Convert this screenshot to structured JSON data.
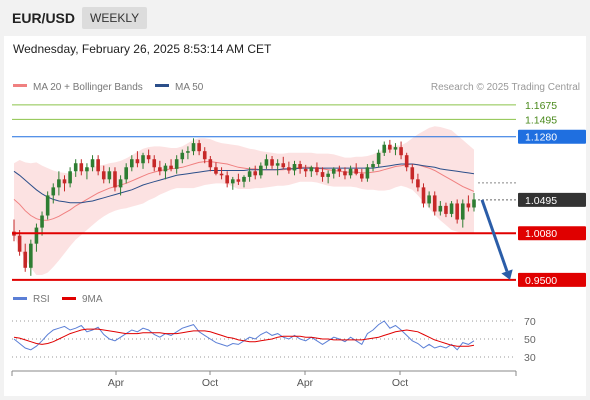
{
  "header": {
    "symbol": "EUR/USD",
    "timeframe": "WEEKLY"
  },
  "datetime": "Wednesday, February 26, 2025 8:53:14 AM CET",
  "legend": {
    "ma20": {
      "label": "MA 20 + Bollinger Bands",
      "color": "#f08080"
    },
    "ma50": {
      "label": "MA 50",
      "color": "#2c4f8a"
    },
    "rsi": {
      "label": "RSI",
      "color": "#5b7fd6"
    },
    "ma9": {
      "label": "9MA",
      "color": "#e00000"
    }
  },
  "credit": "Research © 2025 Trading Central",
  "colors": {
    "bull": "#2e7d32",
    "bear": "#c62828",
    "arrow": "#2b5da8",
    "green_line": "#8bc34a",
    "blue_line": "#1f6fe0",
    "red_line": "#e00000",
    "band": "#fbd8d8"
  },
  "chart_data": {
    "type": "candlestick",
    "price_range": [
      0.9461,
      1.1786
    ],
    "levels": [
      {
        "value": "1.1675",
        "kind": "green"
      },
      {
        "value": "1.1495",
        "kind": "green"
      },
      {
        "value": "1.1280",
        "kind": "blue"
      },
      {
        "value": "1.0495",
        "kind": "current"
      },
      {
        "value": "1.0080",
        "kind": "red"
      },
      {
        "value": "0.9500",
        "kind": "red"
      }
    ],
    "forecast_arrow": {
      "from": 1.0495,
      "to": 0.95
    },
    "x_ticks": [
      "Apr",
      "Oct",
      "Apr",
      "Oct"
    ],
    "candles": [
      [
        1.01,
        1.025,
        0.998,
        1.005
      ],
      [
        1.005,
        1.012,
        0.98,
        0.985
      ],
      [
        0.985,
        0.995,
        0.96,
        0.965
      ],
      [
        0.965,
        1.0,
        0.955,
        0.995
      ],
      [
        0.995,
        1.02,
        0.985,
        1.015
      ],
      [
        1.015,
        1.035,
        1.005,
        1.03
      ],
      [
        1.03,
        1.06,
        1.025,
        1.055
      ],
      [
        1.055,
        1.07,
        1.045,
        1.065
      ],
      [
        1.065,
        1.085,
        1.055,
        1.075
      ],
      [
        1.075,
        1.08,
        1.06,
        1.07
      ],
      [
        1.07,
        1.09,
        1.065,
        1.085
      ],
      [
        1.085,
        1.1,
        1.078,
        1.095
      ],
      [
        1.095,
        1.1,
        1.08,
        1.085
      ],
      [
        1.085,
        1.095,
        1.075,
        1.09
      ],
      [
        1.09,
        1.105,
        1.085,
        1.1
      ],
      [
        1.1,
        1.105,
        1.08,
        1.085
      ],
      [
        1.085,
        1.092,
        1.07,
        1.075
      ],
      [
        1.075,
        1.09,
        1.07,
        1.085
      ],
      [
        1.085,
        1.09,
        1.06,
        1.065
      ],
      [
        1.065,
        1.08,
        1.055,
        1.075
      ],
      [
        1.075,
        1.095,
        1.07,
        1.09
      ],
      [
        1.09,
        1.105,
        1.085,
        1.1
      ],
      [
        1.1,
        1.11,
        1.09,
        1.095
      ],
      [
        1.095,
        1.108,
        1.088,
        1.105
      ],
      [
        1.105,
        1.112,
        1.095,
        1.1
      ],
      [
        1.1,
        1.105,
        1.085,
        1.09
      ],
      [
        1.09,
        1.098,
        1.08,
        1.085
      ],
      [
        1.085,
        1.095,
        1.075,
        1.092
      ],
      [
        1.092,
        1.1,
        1.085,
        1.088
      ],
      [
        1.088,
        1.105,
        1.082,
        1.1
      ],
      [
        1.1,
        1.112,
        1.095,
        1.108
      ],
      [
        1.108,
        1.116,
        1.1,
        1.11
      ],
      [
        1.11,
        1.126,
        1.105,
        1.12
      ],
      [
        1.12,
        1.124,
        1.105,
        1.11
      ],
      [
        1.11,
        1.115,
        1.095,
        1.1
      ],
      [
        1.1,
        1.104,
        1.085,
        1.09
      ],
      [
        1.09,
        1.096,
        1.08,
        1.082
      ],
      [
        1.082,
        1.09,
        1.075,
        1.08
      ],
      [
        1.08,
        1.085,
        1.065,
        1.07
      ],
      [
        1.07,
        1.078,
        1.062,
        1.075
      ],
      [
        1.075,
        1.082,
        1.068,
        1.072
      ],
      [
        1.072,
        1.08,
        1.065,
        1.078
      ],
      [
        1.078,
        1.09,
        1.072,
        1.085
      ],
      [
        1.085,
        1.092,
        1.075,
        1.08
      ],
      [
        1.08,
        1.096,
        1.076,
        1.092
      ],
      [
        1.092,
        1.106,
        1.088,
        1.1
      ],
      [
        1.1,
        1.104,
        1.088,
        1.092
      ],
      [
        1.092,
        1.1,
        1.08,
        1.095
      ],
      [
        1.095,
        1.103,
        1.088,
        1.09
      ],
      [
        1.09,
        1.097,
        1.082,
        1.086
      ],
      [
        1.086,
        1.098,
        1.08,
        1.094
      ],
      [
        1.094,
        1.098,
        1.082,
        1.088
      ],
      [
        1.088,
        1.093,
        1.078,
        1.085
      ],
      [
        1.085,
        1.092,
        1.078,
        1.09
      ],
      [
        1.09,
        1.096,
        1.08,
        1.084
      ],
      [
        1.084,
        1.09,
        1.072,
        1.078
      ],
      [
        1.078,
        1.086,
        1.07,
        1.082
      ],
      [
        1.082,
        1.09,
        1.076,
        1.088
      ],
      [
        1.088,
        1.092,
        1.078,
        1.085
      ],
      [
        1.085,
        1.09,
        1.075,
        1.08
      ],
      [
        1.08,
        1.092,
        1.076,
        1.088
      ],
      [
        1.088,
        1.095,
        1.08,
        1.082
      ],
      [
        1.082,
        1.088,
        1.072,
        1.076
      ],
      [
        1.076,
        1.094,
        1.072,
        1.09
      ],
      [
        1.09,
        1.098,
        1.085,
        1.094
      ],
      [
        1.094,
        1.112,
        1.09,
        1.108
      ],
      [
        1.108,
        1.122,
        1.104,
        1.118
      ],
      [
        1.118,
        1.124,
        1.108,
        1.112
      ],
      [
        1.112,
        1.12,
        1.105,
        1.115
      ],
      [
        1.115,
        1.122,
        1.1,
        1.105
      ],
      [
        1.105,
        1.108,
        1.085,
        1.09
      ],
      [
        1.09,
        1.094,
        1.07,
        1.075
      ],
      [
        1.075,
        1.082,
        1.06,
        1.065
      ],
      [
        1.065,
        1.07,
        1.04,
        1.045
      ],
      [
        1.045,
        1.06,
        1.04,
        1.055
      ],
      [
        1.055,
        1.06,
        1.03,
        1.035
      ],
      [
        1.035,
        1.048,
        1.03,
        1.042
      ],
      [
        1.042,
        1.046,
        1.028,
        1.032
      ],
      [
        1.032,
        1.048,
        1.028,
        1.045
      ],
      [
        1.045,
        1.05,
        1.02,
        1.025
      ],
      [
        1.025,
        1.05,
        1.015,
        1.045
      ],
      [
        1.045,
        1.055,
        1.035,
        1.04
      ],
      [
        1.04,
        1.058,
        1.035,
        1.05
      ]
    ],
    "ma20": [
      1.05,
      1.044,
      1.036,
      1.03,
      1.026,
      1.024,
      1.024,
      1.026,
      1.029,
      1.033,
      1.037,
      1.042,
      1.046,
      1.05,
      1.054,
      1.058,
      1.061,
      1.064,
      1.066,
      1.068,
      1.07,
      1.073,
      1.076,
      1.079,
      1.082,
      1.084,
      1.086,
      1.087,
      1.088,
      1.089,
      1.09,
      1.092,
      1.094,
      1.096,
      1.097,
      1.097,
      1.096,
      1.095,
      1.094,
      1.092,
      1.09,
      1.089,
      1.088,
      1.088,
      1.087,
      1.087,
      1.087,
      1.087,
      1.087,
      1.088,
      1.089,
      1.09,
      1.09,
      1.09,
      1.089,
      1.088,
      1.087,
      1.086,
      1.085,
      1.084,
      1.084,
      1.084,
      1.083,
      1.083,
      1.084,
      1.085,
      1.087,
      1.089,
      1.091,
      1.092,
      1.093,
      1.094,
      1.093,
      1.091,
      1.089,
      1.086,
      1.082,
      1.078,
      1.074,
      1.07,
      1.066,
      1.063,
      1.06
    ],
    "ma50": [
      1.085,
      1.08,
      1.074,
      1.068,
      1.062,
      1.057,
      1.053,
      1.05,
      1.048,
      1.047,
      1.046,
      1.046,
      1.046,
      1.047,
      1.048,
      1.05,
      1.052,
      1.054,
      1.056,
      1.058,
      1.06,
      1.062,
      1.065,
      1.068,
      1.07,
      1.072,
      1.074,
      1.076,
      1.078,
      1.08,
      1.081,
      1.082,
      1.083,
      1.084,
      1.085,
      1.086,
      1.086,
      1.086,
      1.086,
      1.086,
      1.086,
      1.086,
      1.087,
      1.087,
      1.087,
      1.087,
      1.087,
      1.087,
      1.088,
      1.088,
      1.088,
      1.089,
      1.089,
      1.089,
      1.089,
      1.089,
      1.089,
      1.089,
      1.089,
      1.089,
      1.089,
      1.089,
      1.089,
      1.089,
      1.089,
      1.09,
      1.091,
      1.092,
      1.093,
      1.094,
      1.094,
      1.094,
      1.093,
      1.092,
      1.091,
      1.09,
      1.088,
      1.087,
      1.086,
      1.085,
      1.084,
      1.083,
      1.082
    ],
    "bb_width": [
      0.045,
      0.055,
      0.06,
      0.065,
      0.07,
      0.068,
      0.065,
      0.06,
      0.055,
      0.05,
      0.045,
      0.042,
      0.04,
      0.038,
      0.036,
      0.034,
      0.032,
      0.031,
      0.03,
      0.03,
      0.031,
      0.032,
      0.033,
      0.034,
      0.033,
      0.032,
      0.03,
      0.028,
      0.026,
      0.025,
      0.026,
      0.028,
      0.03,
      0.03,
      0.029,
      0.028,
      0.026,
      0.025,
      0.025,
      0.026,
      0.027,
      0.026,
      0.025,
      0.024,
      0.023,
      0.022,
      0.021,
      0.02,
      0.02,
      0.02,
      0.019,
      0.018,
      0.018,
      0.018,
      0.018,
      0.019,
      0.02,
      0.02,
      0.019,
      0.018,
      0.018,
      0.019,
      0.02,
      0.021,
      0.022,
      0.024,
      0.026,
      0.027,
      0.026,
      0.025,
      0.028,
      0.032,
      0.038,
      0.044,
      0.05,
      0.055,
      0.058,
      0.06,
      0.062,
      0.06,
      0.058,
      0.055,
      0.052
    ],
    "rsi": {
      "levels": [
        "70",
        "50",
        "30"
      ],
      "range": [
        20,
        80
      ],
      "rsi": [
        50,
        45,
        40,
        38,
        42,
        48,
        55,
        60,
        62,
        64,
        60,
        62,
        65,
        58,
        60,
        63,
        55,
        50,
        48,
        52,
        56,
        60,
        58,
        62,
        60,
        55,
        52,
        56,
        54,
        58,
        62,
        64,
        66,
        58,
        54,
        50,
        46,
        44,
        42,
        45,
        44,
        48,
        52,
        50,
        55,
        58,
        54,
        56,
        52,
        50,
        54,
        50,
        48,
        52,
        48,
        44,
        48,
        52,
        50,
        47,
        52,
        48,
        44,
        56,
        60,
        66,
        70,
        62,
        65,
        60,
        54,
        48,
        45,
        40,
        44,
        40,
        42,
        40,
        44,
        38,
        46,
        44,
        48
      ],
      "ma9": [
        52,
        51,
        49,
        47,
        45,
        44,
        45,
        47,
        50,
        53,
        56,
        58,
        60,
        61,
        61,
        61,
        60,
        59,
        58,
        57,
        56,
        56,
        56,
        57,
        57,
        57,
        57,
        56,
        56,
        56,
        57,
        58,
        59,
        59,
        59,
        58,
        56,
        54,
        52,
        51,
        49,
        48,
        47,
        47,
        48,
        49,
        50,
        52,
        53,
        53,
        53,
        53,
        52,
        52,
        51,
        50,
        50,
        49,
        49,
        49,
        49,
        49,
        49,
        50,
        51,
        52,
        54,
        56,
        58,
        59,
        60,
        59,
        58,
        55,
        52,
        49,
        47,
        45,
        43,
        42,
        42,
        42,
        43
      ]
    }
  }
}
